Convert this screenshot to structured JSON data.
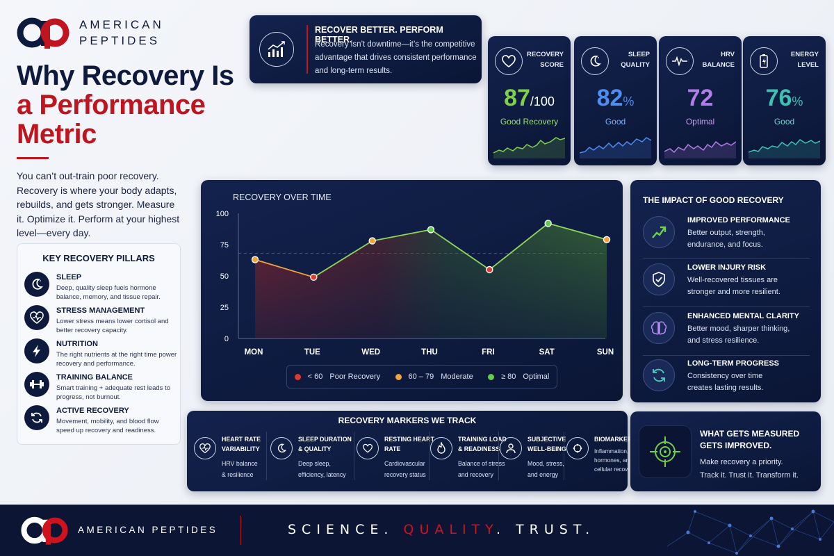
{
  "brand": {
    "name_line1": "AMERICAN",
    "name_line2": "PEPTIDES",
    "colors": {
      "navy": "#0e1a3d",
      "red": "#c0141f"
    }
  },
  "hero": {
    "title_line1": "Why Recovery Is",
    "title_line2": "a Performance",
    "title_line3": "Metric",
    "intro": "You can’t out-train poor recovery. Recovery is where your body adapts, rebuilds, and gets stronger. Measure it. Optimize it. Perform at your highest level—every day."
  },
  "pillars": {
    "heading": "KEY RECOVERY PILLARS",
    "items": [
      {
        "icon": "moon-icon",
        "title": "SLEEP",
        "desc": "Deep, quality sleep fuels hormone balance, memory, and tissue repair."
      },
      {
        "icon": "heart-pulse-icon",
        "title": "STRESS MANAGEMENT",
        "desc": "Lower stress means lower cortisol and better recovery capacity."
      },
      {
        "icon": "lightning-icon",
        "title": "NUTRITION",
        "desc": "The right nutrients at the right time power recovery and performance."
      },
      {
        "icon": "dumbbell-icon",
        "title": "TRAINING BALANCE",
        "desc": "Smart training + adequate rest leads to progress, not burnout."
      },
      {
        "icon": "refresh-icon",
        "title": "ACTIVE RECOVERY",
        "desc": "Movement, mobility, and blood flow speed up recovery and readiness."
      }
    ]
  },
  "banner": {
    "title": "RECOVER BETTER. PERFORM BETTER.",
    "body": "Recovery isn’t downtime—it’s the competitive advantage that drives consistent performance and long-term results."
  },
  "metrics": [
    {
      "icon": "heart-icon",
      "label_line1": "RECOVERY",
      "label_line2": "SCORE",
      "value": "87",
      "unit": "/100",
      "status": "Good Recovery",
      "color": "#7fd14a"
    },
    {
      "icon": "moon-icon",
      "label_line1": "SLEEP",
      "label_line2": "QUALITY",
      "value": "82",
      "unit": "%",
      "status": "Good",
      "color": "#4f8df0"
    },
    {
      "icon": "pulse-icon",
      "label_line1": "HRV",
      "label_line2": "BALANCE",
      "value": "72",
      "unit": "",
      "status": "Optimal",
      "color": "#b07ee6"
    },
    {
      "icon": "battery-icon",
      "label_line1": "ENERGY",
      "label_line2": "LEVEL",
      "value": "76",
      "unit": "%",
      "status": "Good",
      "color": "#3fc1b2"
    }
  ],
  "chart_data": {
    "type": "line",
    "title": "RECOVERY OVER TIME",
    "categories": [
      "MON",
      "TUE",
      "WED",
      "THU",
      "FRI",
      "SAT",
      "SUN"
    ],
    "values": [
      63,
      49,
      78,
      87,
      55,
      92,
      79
    ],
    "ylim": [
      0,
      100
    ],
    "yticks": [
      "0",
      "25",
      "50",
      "75",
      "100"
    ],
    "reference_line": 68,
    "grid": false,
    "legend": [
      {
        "range": "< 60",
        "label": "Poor Recovery",
        "color": "#e03a2f"
      },
      {
        "range": "60 – 79",
        "label": "Moderate",
        "color": "#f2a33a"
      },
      {
        "range": "≥ 80",
        "label": "Optimal",
        "color": "#5fcf4a"
      }
    ]
  },
  "impact": {
    "heading": "THE IMPACT OF GOOD RECOVERY",
    "items": [
      {
        "icon": "trend-up-icon",
        "title": "IMPROVED PERFORMANCE",
        "desc_line1": "Better output, strength,",
        "desc_line2": "endurance, and focus."
      },
      {
        "icon": "shield-check-icon",
        "title": "LOWER INJURY RISK",
        "desc_line1": "Well-recovered tissues are",
        "desc_line2": "stronger and more resilient."
      },
      {
        "icon": "brain-icon",
        "title": "ENHANCED MENTAL CLARITY",
        "desc_line1": "Better mood, sharper thinking,",
        "desc_line2": "and stress resilience."
      },
      {
        "icon": "cycle-icon",
        "title": "LONG-TERM PROGRESS",
        "desc_line1": "Consistency over time",
        "desc_line2": "creates lasting results."
      }
    ]
  },
  "markers": {
    "heading": "RECOVERY MARKERS WE TRACK",
    "items": [
      {
        "icon": "heart-pulse-icon",
        "t1": "HEART RATE",
        "t2": "VARIABILITY",
        "d1": "HRV balance",
        "d2": "& resilience"
      },
      {
        "icon": "moon-icon",
        "t1": "SLEEP DURATION",
        "t2": "& QUALITY",
        "d1": "Deep sleep,",
        "d2": "efficiency, latency"
      },
      {
        "icon": "heart-icon",
        "t1": "RESTING HEART",
        "t2": "RATE",
        "d1": "Cardiovascular",
        "d2": "recovery status"
      },
      {
        "icon": "flame-icon",
        "t1": "TRAINING LOAD",
        "t2": "& READINESS",
        "d1": "Balance of stress",
        "d2": "and recovery"
      },
      {
        "icon": "person-icon",
        "t1": "SUBJECTIVE",
        "t2": "WELL-BEING",
        "d1": "Mood, stress,",
        "d2": "and energy"
      },
      {
        "icon": "cells-icon",
        "t1": "BIOMARKERS",
        "t2": "",
        "d1": "Inflammation,",
        "d2": "hormones, and",
        "d3": "cellular recovery"
      }
    ]
  },
  "measured": {
    "title_line1": "WHAT GETS MEASURED",
    "title_line2": "GETS IMPROVED.",
    "body_line1": "Make recovery a priority.",
    "body_line2": "Track it. Trust it. Transform it."
  },
  "footer": {
    "brand": "AMERICAN PEPTIDES",
    "tag_part1": "SCIENCE.",
    "tag_part2": "QUALITY",
    "tag_part3": ".",
    "tag_part4": "TRUST."
  }
}
